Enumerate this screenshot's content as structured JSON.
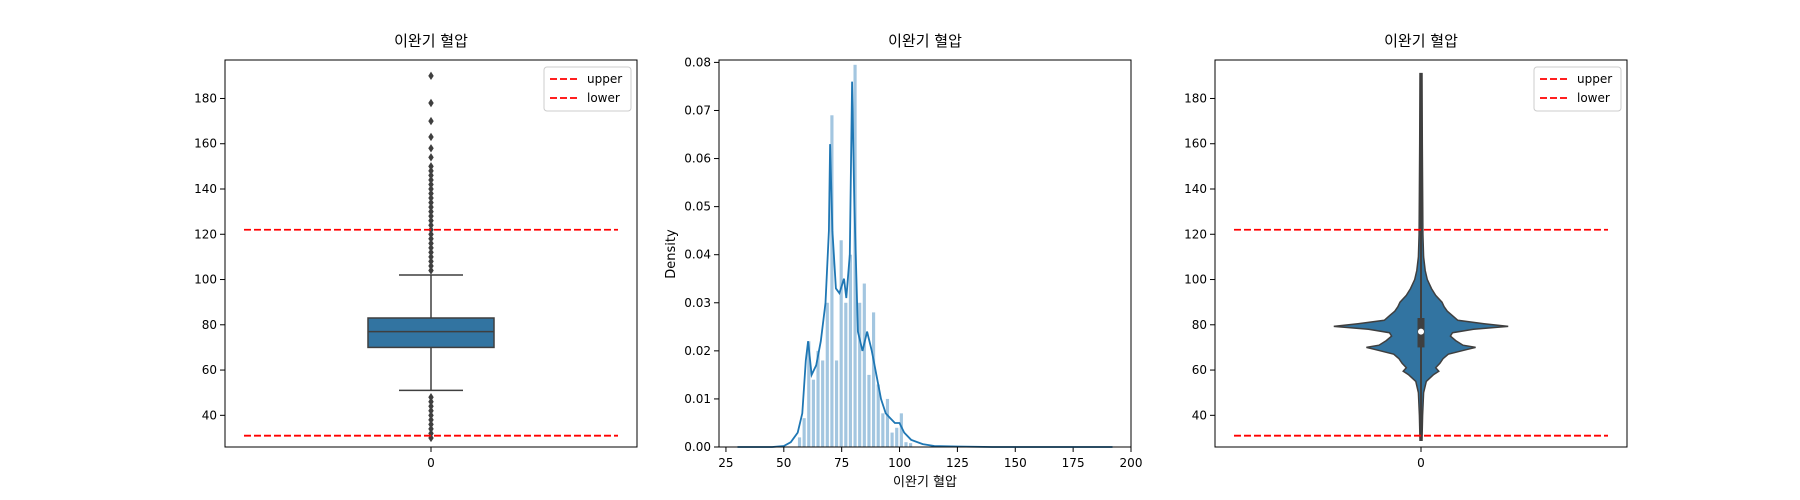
{
  "chart_data": [
    {
      "type": "box",
      "title": "이완기 혈압",
      "x_tick_labels": [
        "0"
      ],
      "ylim": [
        26,
        197
      ],
      "y_ticks": [
        40,
        60,
        80,
        100,
        120,
        140,
        160,
        180
      ],
      "box": {
        "q1": 70,
        "median": 77,
        "q3": 83,
        "whisker_low": 51,
        "whisker_high": 102
      },
      "outliers": [
        30,
        32,
        34,
        36,
        38,
        40,
        42,
        44,
        46,
        48,
        104,
        106,
        108,
        110,
        112,
        114,
        116,
        118,
        120,
        122,
        124,
        126,
        128,
        130,
        132,
        134,
        136,
        138,
        140,
        142,
        144,
        146,
        148,
        150,
        154,
        158,
        163,
        170,
        178,
        190
      ],
      "reference_lines": [
        {
          "name": "upper",
          "value": 122,
          "color": "#ff0000"
        },
        {
          "name": "lower",
          "value": 31,
          "color": "#ff0000"
        }
      ],
      "legend": {
        "position": "top-right",
        "entries": [
          "upper",
          "lower"
        ]
      },
      "box_color": "#3274a1"
    },
    {
      "type": "histogram",
      "title": "이완기 혈압",
      "xlabel": "이완기 혈압",
      "ylabel": "Density",
      "xlim": [
        22,
        200
      ],
      "ylim": [
        0,
        0.0805
      ],
      "x_ticks": [
        25,
        50,
        75,
        100,
        125,
        150,
        175,
        200
      ],
      "y_ticks": [
        "0.00",
        "0.01",
        "0.02",
        "0.03",
        "0.04",
        "0.05",
        "0.06",
        "0.07",
        "0.08"
      ],
      "bin_width": 1.8,
      "bins": [
        [
          57,
          0.002
        ],
        [
          59,
          0.006
        ],
        [
          61,
          0.022
        ],
        [
          63,
          0.014
        ],
        [
          65,
          0.02
        ],
        [
          67,
          0.018
        ],
        [
          69,
          0.03
        ],
        [
          71,
          0.069
        ],
        [
          73,
          0.018
        ],
        [
          75,
          0.043
        ],
        [
          77,
          0.03
        ],
        [
          79,
          0.04
        ],
        [
          81,
          0.0795
        ],
        [
          83,
          0.03
        ],
        [
          85,
          0.034
        ],
        [
          87,
          0.015
        ],
        [
          89,
          0.028
        ],
        [
          91,
          0.013
        ],
        [
          93,
          0.007
        ],
        [
          95,
          0.01
        ],
        [
          97,
          0.003
        ],
        [
          99,
          0.004
        ],
        [
          101,
          0.007
        ],
        [
          103,
          0.001
        ],
        [
          105,
          0.0008
        ]
      ],
      "kde": [
        [
          30,
          0.0
        ],
        [
          45,
          0.0
        ],
        [
          50,
          0.0002
        ],
        [
          53,
          0.001
        ],
        [
          56,
          0.003
        ],
        [
          58,
          0.007
        ],
        [
          59.5,
          0.018
        ],
        [
          60.5,
          0.022
        ],
        [
          62,
          0.015
        ],
        [
          64,
          0.017
        ],
        [
          66,
          0.022
        ],
        [
          68,
          0.03
        ],
        [
          69.5,
          0.045
        ],
        [
          70,
          0.063
        ],
        [
          71,
          0.045
        ],
        [
          72.5,
          0.033
        ],
        [
          74,
          0.032
        ],
        [
          76,
          0.035
        ],
        [
          77,
          0.031
        ],
        [
          78.5,
          0.04
        ],
        [
          79.5,
          0.076
        ],
        [
          80.5,
          0.05
        ],
        [
          82,
          0.024
        ],
        [
          84,
          0.02
        ],
        [
          86,
          0.024
        ],
        [
          88,
          0.02
        ],
        [
          90,
          0.015
        ],
        [
          92,
          0.01
        ],
        [
          94,
          0.007
        ],
        [
          96,
          0.006
        ],
        [
          98,
          0.005
        ],
        [
          100,
          0.005
        ],
        [
          102,
          0.003
        ],
        [
          105,
          0.0015
        ],
        [
          110,
          0.0006
        ],
        [
          115,
          0.0002
        ],
        [
          125,
          0.0001
        ],
        [
          140,
          0.0
        ],
        [
          170,
          0.0
        ],
        [
          192,
          0.0
        ]
      ],
      "bar_color": "#a3c6e0",
      "kde_color": "#1f77b4"
    },
    {
      "type": "violin",
      "title": "이완기 혈압",
      "x_tick_labels": [
        "0"
      ],
      "ylim": [
        26,
        197
      ],
      "y_ticks": [
        40,
        60,
        80,
        100,
        120,
        140,
        160,
        180
      ],
      "profile": [
        [
          29,
          0.01
        ],
        [
          40,
          0.015
        ],
        [
          50,
          0.025
        ],
        [
          55,
          0.05
        ],
        [
          58,
          0.12
        ],
        [
          59.5,
          0.17
        ],
        [
          61,
          0.14
        ],
        [
          63,
          0.18
        ],
        [
          65,
          0.21
        ],
        [
          67,
          0.26
        ],
        [
          69,
          0.43
        ],
        [
          70,
          0.52
        ],
        [
          71,
          0.4
        ],
        [
          73,
          0.33
        ],
        [
          75,
          0.28
        ],
        [
          76.5,
          0.3
        ],
        [
          78,
          0.5
        ],
        [
          79.3,
          0.83
        ],
        [
          80.5,
          0.6
        ],
        [
          82,
          0.35
        ],
        [
          84,
          0.3
        ],
        [
          86,
          0.25
        ],
        [
          88,
          0.22
        ],
        [
          90,
          0.2
        ],
        [
          93,
          0.14
        ],
        [
          96,
          0.1
        ],
        [
          98,
          0.08
        ],
        [
          100,
          0.06
        ],
        [
          104,
          0.04
        ],
        [
          110,
          0.025
        ],
        [
          120,
          0.018
        ],
        [
          140,
          0.015
        ],
        [
          160,
          0.012
        ],
        [
          191,
          0.01
        ]
      ],
      "inner_box": {
        "q1": 70,
        "median": 77,
        "q3": 83,
        "whisker_low": 29,
        "whisker_high": 191
      },
      "reference_lines": [
        {
          "name": "upper",
          "value": 122,
          "color": "#ff0000"
        },
        {
          "name": "lower",
          "value": 31,
          "color": "#ff0000"
        }
      ],
      "legend": {
        "position": "top-right",
        "entries": [
          "upper",
          "lower"
        ]
      },
      "body_color": "#3274a1"
    }
  ]
}
